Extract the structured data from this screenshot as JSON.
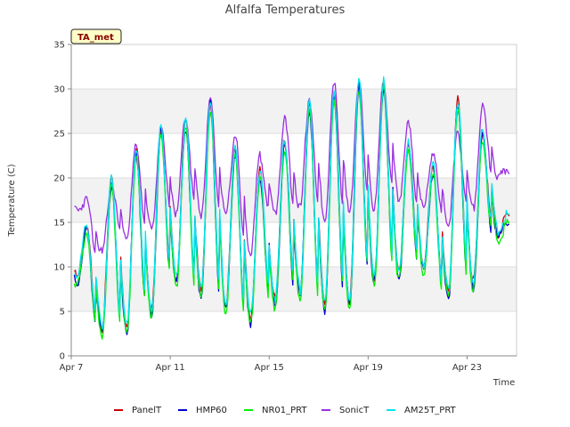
{
  "chart_data": {
    "type": "line",
    "title": "Alfalfa Temperatures",
    "badge": "TA_met",
    "xlabel": "Time",
    "ylabel": "Temperature (C)",
    "ylim": [
      0,
      35
    ],
    "yticks": [
      0,
      5,
      10,
      15,
      20,
      25,
      30,
      35
    ],
    "xlim": [
      "2024-04-07",
      "2024-04-25"
    ],
    "xticks": [
      {
        "date": "2024-04-07",
        "label": "Apr 7"
      },
      {
        "date": "2024-04-11",
        "label": "Apr 11"
      },
      {
        "date": "2024-04-15",
        "label": "Apr 15"
      },
      {
        "date": "2024-04-19",
        "label": "Apr 19"
      },
      {
        "date": "2024-04-23",
        "label": "Apr 23"
      }
    ],
    "data_start": "2024-04-07T03:00",
    "data_end": "2024-04-24T17:00",
    "grid": "horizontal-bands",
    "legend_position": "bottom",
    "daily": [
      {
        "date": "2024-04-07",
        "min": 8.5,
        "max": 14.5,
        "sonic_min": 16.5,
        "sonic_max": 17.5
      },
      {
        "date": "2024-04-08",
        "min": 3.0,
        "max": 19.5,
        "sonic_min": 11.5,
        "sonic_max": 19.5
      },
      {
        "date": "2024-04-09",
        "min": 3.0,
        "max": 23.0,
        "sonic_min": 13.5,
        "sonic_max": 23.5
      },
      {
        "date": "2024-04-10",
        "min": 5.0,
        "max": 25.5,
        "sonic_min": 14.0,
        "sonic_max": 25.5
      },
      {
        "date": "2024-04-11",
        "min": 8.5,
        "max": 26.0,
        "sonic_min": 16.0,
        "sonic_max": 27.0
      },
      {
        "date": "2024-04-12",
        "min": 7.0,
        "max": 28.5,
        "sonic_min": 16.0,
        "sonic_max": 28.5
      },
      {
        "date": "2024-04-13",
        "min": 5.5,
        "max": 23.0,
        "sonic_min": 15.5,
        "sonic_max": 25.0
      },
      {
        "date": "2024-04-14",
        "min": 4.0,
        "max": 20.5,
        "sonic_min": 11.5,
        "sonic_max": 22.5
      },
      {
        "date": "2024-04-15",
        "min": 6.0,
        "max": 24.0,
        "sonic_min": 16.0,
        "sonic_max": 26.5
      },
      {
        "date": "2024-04-16",
        "min": 7.0,
        "max": 28.0,
        "sonic_min": 16.5,
        "sonic_max": 29.0
      },
      {
        "date": "2024-04-17",
        "min": 5.5,
        "max": 29.5,
        "sonic_min": 15.5,
        "sonic_max": 30.5
      },
      {
        "date": "2024-04-18",
        "min": 6.0,
        "max": 30.5,
        "sonic_min": 16.0,
        "sonic_max": 31.0
      },
      {
        "date": "2024-04-19",
        "min": 8.5,
        "max": 30.5,
        "sonic_min": 16.5,
        "sonic_max": 30.8
      },
      {
        "date": "2024-04-20",
        "min": 9.0,
        "max": 24.0,
        "sonic_min": 17.5,
        "sonic_max": 26.0
      },
      {
        "date": "2024-04-21",
        "min": 10.0,
        "max": 21.0,
        "sonic_min": 16.5,
        "sonic_max": 23.0
      },
      {
        "date": "2024-04-22",
        "min": 7.0,
        "max": 28.5,
        "sonic_min": 15.0,
        "sonic_max": 25.0
      },
      {
        "date": "2024-04-23",
        "min": 8.0,
        "max": 25.0,
        "sonic_min": 16.5,
        "sonic_max": 28.0
      },
      {
        "date": "2024-04-24",
        "min": 13.5,
        "max": 15.5,
        "sonic_min": 20.0,
        "sonic_max": 21.0
      }
    ],
    "series": [
      {
        "name": "PanelT",
        "color": "#cc0000"
      },
      {
        "name": "HMP60",
        "color": "#0000cc"
      },
      {
        "name": "NR01_PRT",
        "color": "#00ee00"
      },
      {
        "name": "SonicT",
        "color": "#9a30e0"
      },
      {
        "name": "AM25T_PRT",
        "color": "#00e5ee"
      }
    ]
  }
}
